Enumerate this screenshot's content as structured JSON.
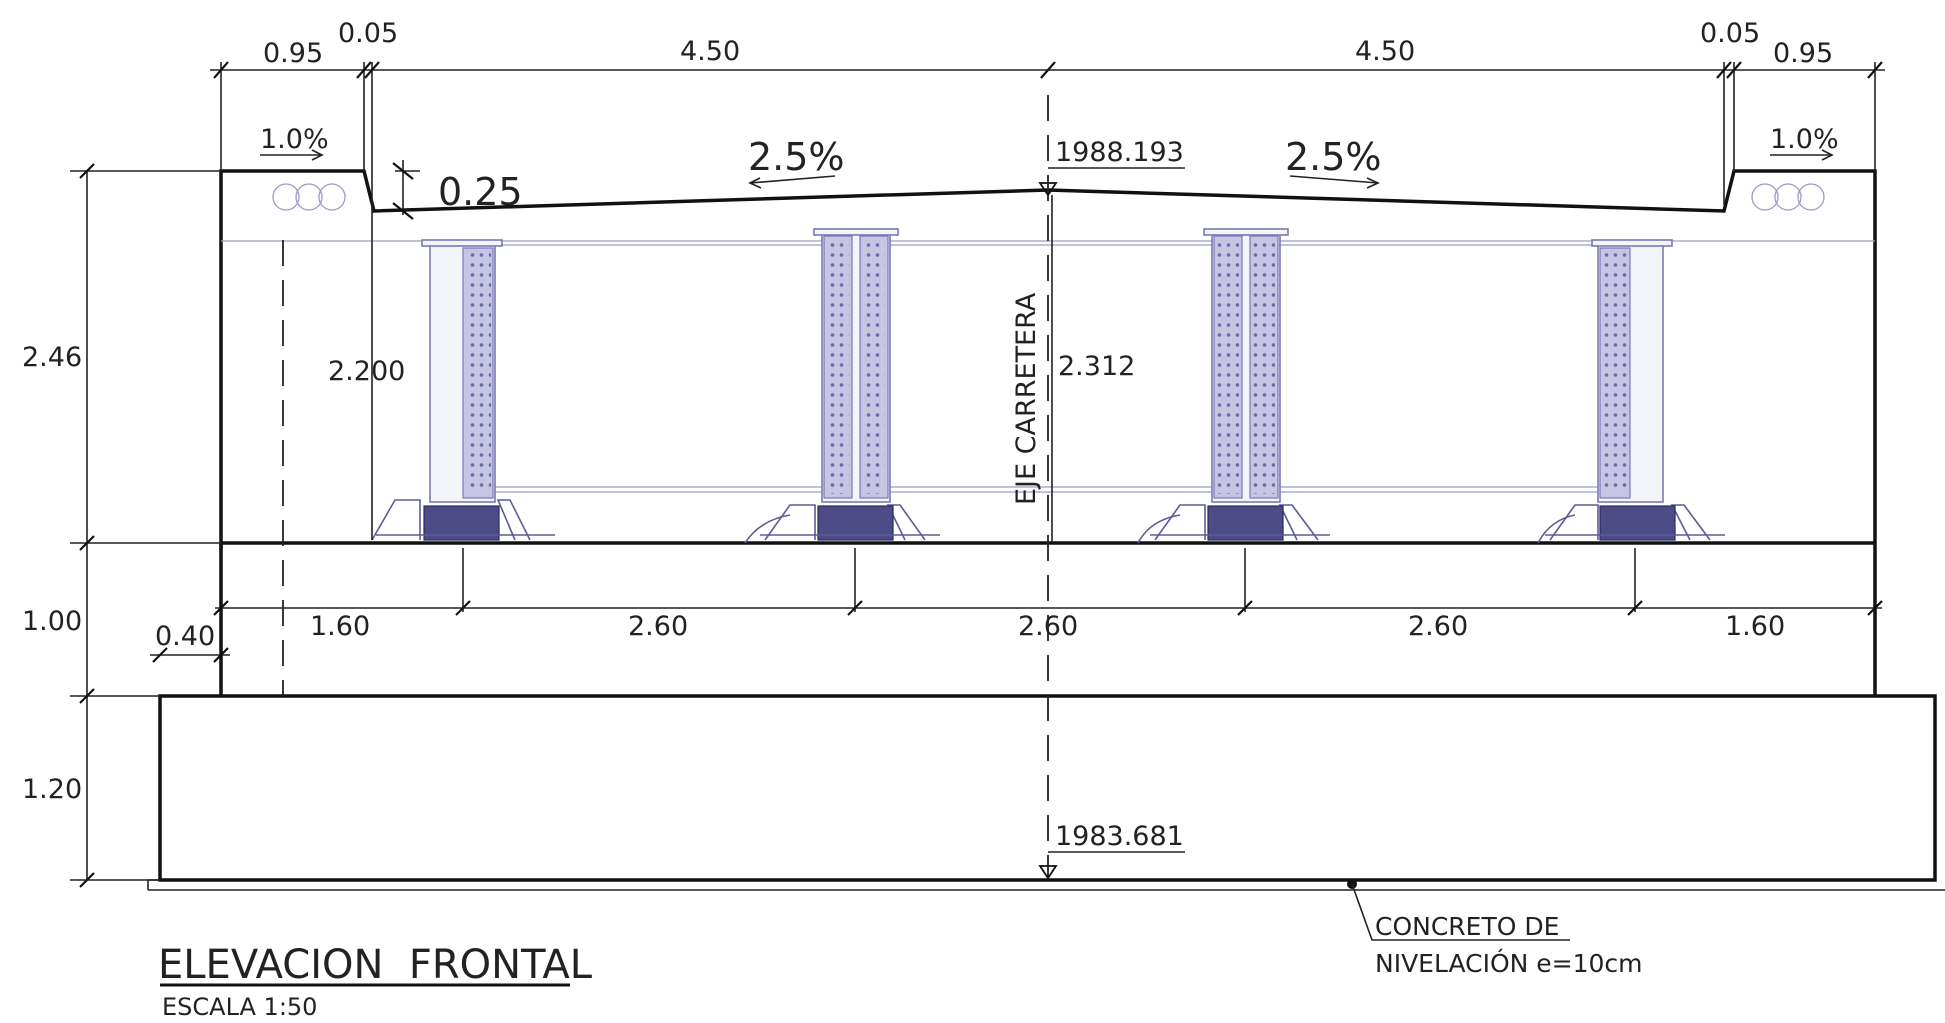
{
  "drawing": {
    "title": "ELEVACION  FRONTAL",
    "scale": "ESCALA 1:50"
  },
  "top_dims": [
    "0.95",
    "0.05",
    "4.50",
    "4.50",
    "0.05",
    "0.95"
  ],
  "slopes": {
    "sidewalk_left": "1.0%",
    "sidewalk_right": "1.0%",
    "deck_left": "2.5%",
    "deck_right": "2.5%"
  },
  "curb_height": "0.25",
  "elevations": {
    "top": "1988.193",
    "bottom": "1983.681"
  },
  "beam_heights": {
    "left": "2.200",
    "center": "2.312"
  },
  "axis_label": "EJE  CARRETERA",
  "left_dims": [
    "2.46",
    "1.00",
    "1.20"
  ],
  "offset_dim": "0.40",
  "beam_spacing": [
    "1.60",
    "2.60",
    "2.60",
    "2.60",
    "1.60"
  ],
  "note": {
    "line1": "CONCRETO DE",
    "line2": "NIVELACIÓN  e=10cm"
  }
}
